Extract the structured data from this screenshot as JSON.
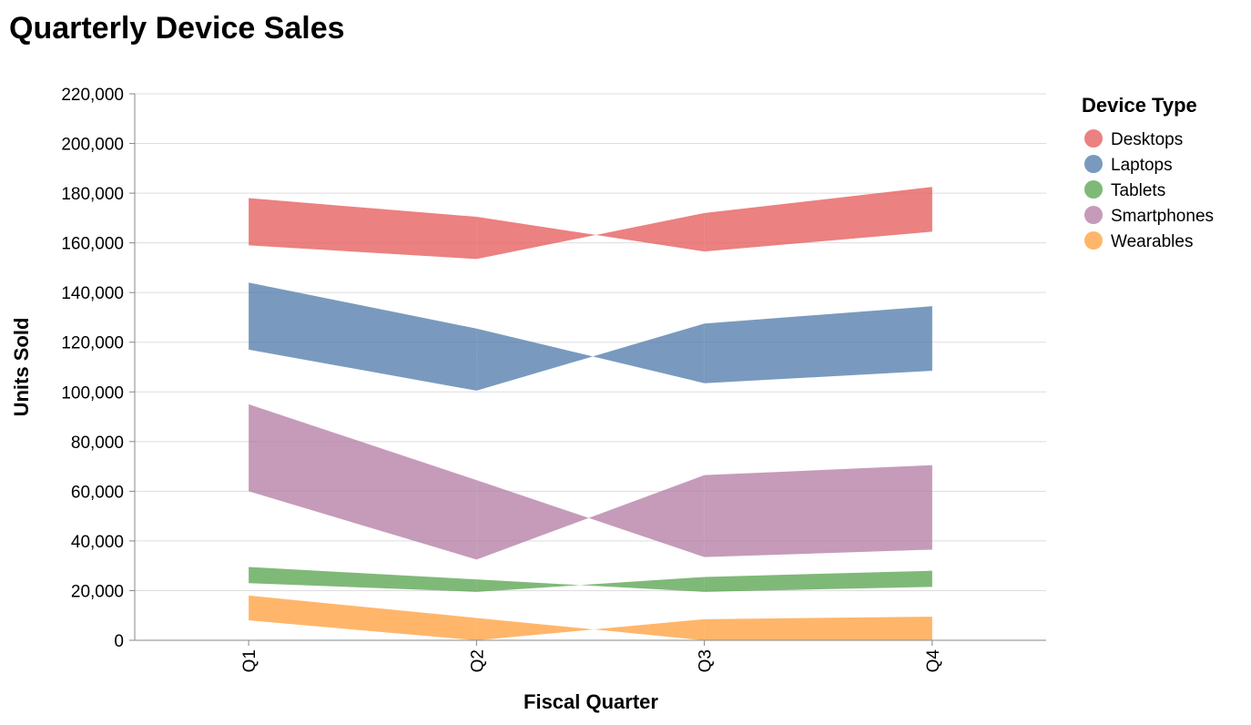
{
  "chart_data": {
    "type": "area",
    "title": "Quarterly Device Sales",
    "xlabel": "Fiscal Quarter",
    "ylabel": "Units Sold",
    "categories": [
      "Q1",
      "Q2",
      "Q3",
      "Q4"
    ],
    "ylim": [
      0,
      220000
    ],
    "y_ticks": [
      0,
      20000,
      40000,
      60000,
      80000,
      100000,
      120000,
      140000,
      160000,
      180000,
      200000,
      220000
    ],
    "y_tick_labels": [
      "0",
      "20,000",
      "40,000",
      "60,000",
      "80,000",
      "100,000",
      "120,000",
      "140,000",
      "160,000",
      "180,000",
      "200,000",
      "220,000"
    ],
    "grid": true,
    "legend": {
      "title": "Device Type",
      "placement": "right"
    },
    "series": [
      {
        "name": "Desktops",
        "color": "#e45756",
        "start": [
          159000,
          170500,
          172000,
          164500
        ],
        "end": [
          178000,
          153500,
          156500,
          182500
        ]
      },
      {
        "name": "Laptops",
        "color": "#4c78a8",
        "start": [
          117000,
          125500,
          127500,
          108500
        ],
        "end": [
          144000,
          100500,
          103500,
          134500
        ]
      },
      {
        "name": "Tablets",
        "color": "#54a24b",
        "start": [
          23000,
          24500,
          25500,
          21500
        ],
        "end": [
          29500,
          19500,
          19500,
          28000
        ]
      },
      {
        "name": "Smartphones",
        "color": "#b279a2",
        "start": [
          60000,
          64500,
          66500,
          36500
        ],
        "end": [
          95000,
          32500,
          33500,
          70500
        ]
      },
      {
        "name": "Wearables",
        "color": "#ff9d38",
        "start": [
          8000,
          9000,
          8500,
          0
        ],
        "end": [
          18000,
          0,
          0,
          9500
        ]
      }
    ]
  }
}
